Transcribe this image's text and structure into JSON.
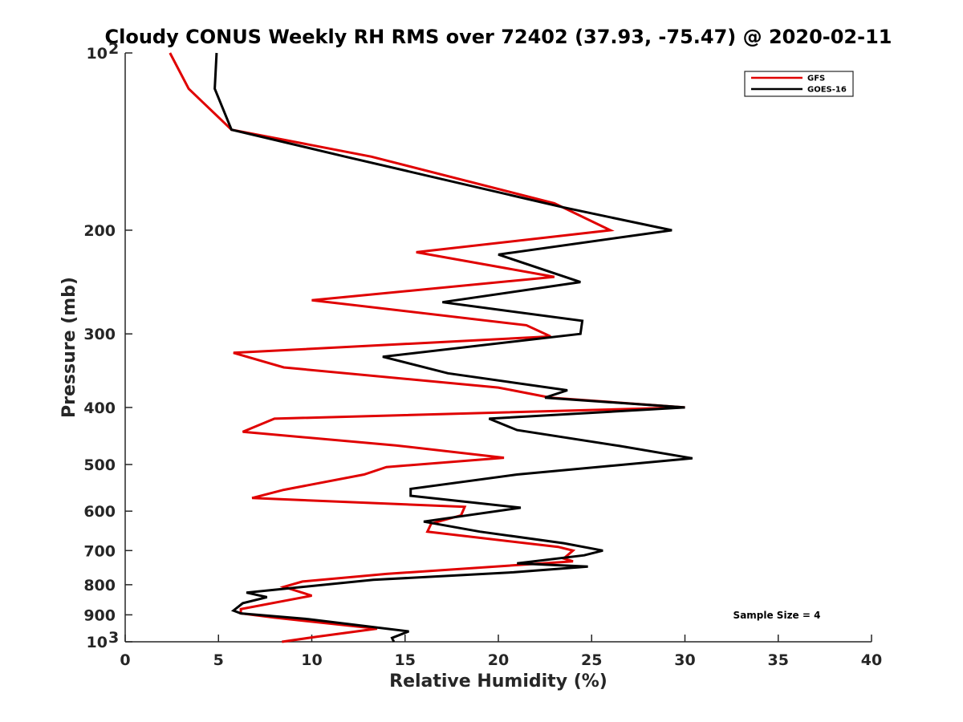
{
  "chart_data": {
    "type": "line",
    "title": "Cloudy CONUS Weekly RH RMS over 72402 (37.93, -75.47) @ 2020-02-11",
    "xlabel": "Relative Humidity (%)",
    "ylabel": "Pressure (mb)",
    "xlim": [
      0,
      40
    ],
    "ylim": [
      100,
      1000
    ],
    "y_scale": "log",
    "y_reversed": true,
    "grid": false,
    "legend_position": "top-right",
    "annotation": "Sample Size = 4",
    "x_ticks": [
      {
        "value": 0,
        "label": "0"
      },
      {
        "value": 5,
        "label": "5"
      },
      {
        "value": 10,
        "label": "10"
      },
      {
        "value": 15,
        "label": "15"
      },
      {
        "value": 20,
        "label": "20"
      },
      {
        "value": 25,
        "label": "25"
      },
      {
        "value": 30,
        "label": "30"
      },
      {
        "value": 35,
        "label": "35"
      },
      {
        "value": 40,
        "label": "40"
      }
    ],
    "y_ticks": [
      {
        "value": 100,
        "label": "10",
        "sup": "2"
      },
      {
        "value": 200,
        "label": "200"
      },
      {
        "value": 300,
        "label": "300"
      },
      {
        "value": 400,
        "label": "400"
      },
      {
        "value": 500,
        "label": "500"
      },
      {
        "value": 600,
        "label": "600"
      },
      {
        "value": 700,
        "label": "700"
      },
      {
        "value": 800,
        "label": "800"
      },
      {
        "value": 900,
        "label": "900"
      },
      {
        "value": 1000,
        "label": "10",
        "sup": "3"
      }
    ],
    "series": [
      {
        "name": "GFS",
        "color": "#e00000",
        "points": [
          [
            2.4,
            100
          ],
          [
            3.4,
            115
          ],
          [
            5.7,
            135
          ],
          [
            13.2,
            150
          ],
          [
            23,
            180
          ],
          [
            26,
            200
          ],
          [
            15.6,
            218
          ],
          [
            23,
            240
          ],
          [
            10,
            263
          ],
          [
            21.5,
            290
          ],
          [
            22.8,
            303
          ],
          [
            5.8,
            323
          ],
          [
            8.5,
            342
          ],
          [
            20,
            370
          ],
          [
            22.8,
            385
          ],
          [
            30,
            400
          ],
          [
            8,
            418
          ],
          [
            6.3,
            440
          ],
          [
            14.5,
            464
          ],
          [
            20.3,
            487
          ],
          [
            14,
            505
          ],
          [
            12.8,
            520
          ],
          [
            8.5,
            552
          ],
          [
            6.8,
            570
          ],
          [
            18.2,
            590
          ],
          [
            18,
            610
          ],
          [
            16.4,
            630
          ],
          [
            16.2,
            650
          ],
          [
            19,
            666
          ],
          [
            23.2,
            690
          ],
          [
            24,
            700
          ],
          [
            23.5,
            722
          ],
          [
            24,
            730
          ],
          [
            14,
            767
          ],
          [
            9.5,
            790
          ],
          [
            8.5,
            807
          ],
          [
            10,
            835
          ],
          [
            6.2,
            880
          ],
          [
            6.2,
            895
          ],
          [
            8,
            910
          ],
          [
            13.5,
            950
          ],
          [
            10.3,
            980
          ],
          [
            8.4,
            1000
          ]
        ]
      },
      {
        "name": "GOES-16",
        "color": "#000000",
        "points": [
          [
            4.9,
            100
          ],
          [
            4.8,
            115
          ],
          [
            5.7,
            135
          ],
          [
            11.8,
            150
          ],
          [
            23.5,
            183
          ],
          [
            29.3,
            200
          ],
          [
            20,
            220
          ],
          [
            24.4,
            245
          ],
          [
            17,
            265
          ],
          [
            24.5,
            285
          ],
          [
            24.4,
            300
          ],
          [
            13.8,
            328
          ],
          [
            17.3,
            350
          ],
          [
            23.7,
            374
          ],
          [
            22.5,
            385
          ],
          [
            30,
            400
          ],
          [
            19.5,
            418
          ],
          [
            21,
            437
          ],
          [
            26.5,
            465
          ],
          [
            30.4,
            488
          ],
          [
            21,
            520
          ],
          [
            15.3,
            550
          ],
          [
            15.3,
            565
          ],
          [
            21.2,
            592
          ],
          [
            16,
            625
          ],
          [
            19,
            650
          ],
          [
            23.5,
            680
          ],
          [
            25.6,
            700
          ],
          [
            24.6,
            713
          ],
          [
            21,
            736
          ],
          [
            24.8,
            745
          ],
          [
            20.8,
            762
          ],
          [
            13.3,
            785
          ],
          [
            6.5,
            825
          ],
          [
            7.6,
            840
          ],
          [
            6.3,
            860
          ],
          [
            5.8,
            885
          ],
          [
            6.2,
            895
          ],
          [
            9.8,
            915
          ],
          [
            15.2,
            960
          ],
          [
            14.3,
            985
          ],
          [
            14.4,
            1000
          ]
        ]
      }
    ]
  }
}
